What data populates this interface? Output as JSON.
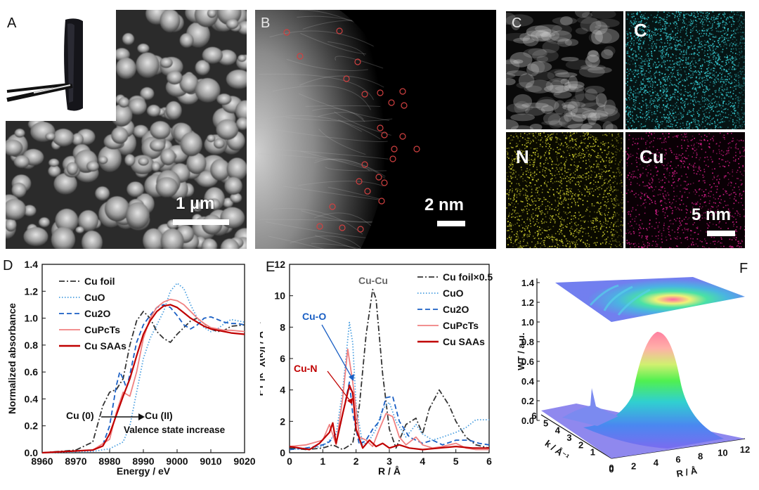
{
  "panels": {
    "A": {
      "letter": "A",
      "scale": "1 µm"
    },
    "B": {
      "letter": "B",
      "scale": "2 nm"
    },
    "C": {
      "letter": "C",
      "scale": "5 nm",
      "maps": [
        "C",
        "N",
        "Cu"
      ]
    },
    "D": {
      "letter": "D"
    },
    "E": {
      "letter": "E"
    },
    "F": {
      "letter": "F"
    }
  },
  "chart_data": [
    {
      "id": "D",
      "type": "line",
      "xlabel": "Energy / eV",
      "ylabel": "Normalized absorbance",
      "xlim": [
        8960,
        9020
      ],
      "ylim": [
        0.0,
        1.4
      ],
      "xticks": [
        8960,
        8970,
        8980,
        8990,
        9000,
        9010,
        9020
      ],
      "yticks": [
        0.0,
        0.2,
        0.4,
        0.6,
        0.8,
        1.0,
        1.2,
        1.4
      ],
      "legend": "top-left",
      "annotations": {
        "start": "Cu (0)",
        "end": "Cu (II)",
        "note": "Valence state increase"
      },
      "series": [
        {
          "name": "Cu foil",
          "color": "#333333",
          "dash": "dashdot",
          "x": [
            8960,
            8970,
            8975,
            8978,
            8980,
            8982,
            8984,
            8986,
            8988,
            8990,
            8992,
            8994,
            8996,
            8998,
            9000,
            9002,
            9004,
            9006,
            9008,
            9010,
            9012,
            9014,
            9016,
            9020
          ],
          "y": [
            0.0,
            0.02,
            0.08,
            0.35,
            0.45,
            0.47,
            0.55,
            0.8,
            0.98,
            1.05,
            1.0,
            0.9,
            0.85,
            0.82,
            0.88,
            0.93,
            0.98,
            1.0,
            0.96,
            0.92,
            0.9,
            0.91,
            0.94,
            0.95
          ]
        },
        {
          "name": "CuO",
          "color": "#4a9fe0",
          "dash": "dotted",
          "x": [
            8960,
            8975,
            8980,
            8984,
            8986,
            8988,
            8990,
            8992,
            8994,
            8996,
            8998,
            9000,
            9002,
            9004,
            9006,
            9008,
            9010,
            9012,
            9014,
            9016,
            9018,
            9020
          ],
          "y": [
            0.0,
            0.01,
            0.03,
            0.08,
            0.2,
            0.45,
            0.7,
            0.85,
            0.95,
            1.05,
            1.2,
            1.26,
            1.22,
            1.1,
            1.0,
            0.93,
            0.9,
            0.92,
            0.96,
            0.99,
            0.98,
            0.97
          ]
        },
        {
          "name": "Cu2O",
          "color": "#1a5fc4",
          "dash": "dashed",
          "x": [
            8960,
            8975,
            8978,
            8980,
            8982,
            8983,
            8984,
            8985,
            8986,
            8988,
            8990,
            8992,
            8994,
            8996,
            8998,
            9000,
            9002,
            9004,
            9006,
            9008,
            9010,
            9012,
            9014,
            9016,
            9018,
            9020
          ],
          "y": [
            0.0,
            0.02,
            0.06,
            0.2,
            0.5,
            0.6,
            0.55,
            0.48,
            0.58,
            0.82,
            0.95,
            1.02,
            1.08,
            1.1,
            1.08,
            1.02,
            0.95,
            0.92,
            0.95,
            1.0,
            1.01,
            0.99,
            0.97,
            0.96,
            0.96,
            0.95
          ]
        },
        {
          "name": "CuPcTs",
          "color": "#f08080",
          "dash": "solid",
          "x": [
            8960,
            8975,
            8980,
            8982,
            8984,
            8986,
            8988,
            8990,
            8992,
            8994,
            8996,
            8998,
            9000,
            9002,
            9004,
            9006,
            9008,
            9010,
            9012,
            9014,
            9016,
            9020
          ],
          "y": [
            0.0,
            0.02,
            0.1,
            0.3,
            0.45,
            0.42,
            0.6,
            0.85,
            1.0,
            1.08,
            1.12,
            1.14,
            1.13,
            1.1,
            1.05,
            1.0,
            0.96,
            0.93,
            0.92,
            0.91,
            0.91,
            0.9
          ]
        },
        {
          "name": "Cu SAAs",
          "color": "#c00000",
          "dash": "solid",
          "x": [
            8960,
            8975,
            8978,
            8980,
            8982,
            8984,
            8986,
            8988,
            8990,
            8992,
            8994,
            8996,
            8998,
            9000,
            9002,
            9004,
            9006,
            9008,
            9010,
            9012,
            9014,
            9016,
            9020
          ],
          "y": [
            0.0,
            0.02,
            0.05,
            0.14,
            0.28,
            0.42,
            0.55,
            0.72,
            0.88,
            0.98,
            1.05,
            1.09,
            1.1,
            1.08,
            1.04,
            1.0,
            0.97,
            0.94,
            0.92,
            0.91,
            0.9,
            0.89,
            0.88
          ]
        }
      ]
    },
    {
      "id": "E",
      "type": "line",
      "xlabel": "R / Å",
      "ylabel": "FT |k³ χ(k)| / Å⁻⁴",
      "xlim": [
        0,
        6
      ],
      "ylim": [
        0,
        12
      ],
      "xticks": [
        0,
        1,
        2,
        3,
        4,
        5,
        6
      ],
      "yticks": [
        0,
        2,
        4,
        6,
        8,
        10,
        12
      ],
      "legend": "top-right",
      "annotations": {
        "cucu": "Cu-Cu",
        "cuo": "Cu-O",
        "cun": "Cu-N"
      },
      "series": [
        {
          "name": "Cu foil×0.5",
          "color": "#333333",
          "dash": "dashdot",
          "x": [
            0,
            0.5,
            1.0,
            1.3,
            1.6,
            1.9,
            2.1,
            2.3,
            2.5,
            2.6,
            2.8,
            3.0,
            3.2,
            3.5,
            3.8,
            4.0,
            4.2,
            4.5,
            4.8,
            5.0,
            5.3,
            5.6,
            6.0
          ],
          "y": [
            0.3,
            0.2,
            0.3,
            0.5,
            0.2,
            0.6,
            3.0,
            7.5,
            10.4,
            9.8,
            5.0,
            1.5,
            0.3,
            1.8,
            2.2,
            1.2,
            2.8,
            4.0,
            3.0,
            2.0,
            1.0,
            0.5,
            0.3
          ]
        },
        {
          "name": "CuO",
          "color": "#4a9fe0",
          "dash": "dotted",
          "x": [
            0,
            0.5,
            1.0,
            1.2,
            1.4,
            1.6,
            1.8,
            1.9,
            2.0,
            2.2,
            2.4,
            2.6,
            2.8,
            3.0,
            3.2,
            3.5,
            3.8,
            4.0,
            4.3,
            4.6,
            5.0,
            5.3,
            5.6,
            6.0
          ],
          "y": [
            0.2,
            0.3,
            0.4,
            0.8,
            1.2,
            4.0,
            8.3,
            7.0,
            3.0,
            0.5,
            0.8,
            1.5,
            2.8,
            3.2,
            2.0,
            1.0,
            1.8,
            1.2,
            0.8,
            1.0,
            1.3,
            1.6,
            2.1,
            2.1
          ]
        },
        {
          "name": "Cu2O",
          "color": "#1a5fc4",
          "dash": "dashed",
          "x": [
            0,
            0.5,
            1.0,
            1.2,
            1.5,
            1.7,
            1.8,
            1.9,
            2.1,
            2.3,
            2.5,
            2.7,
            2.9,
            3.1,
            3.3,
            3.6,
            4.0,
            4.3,
            4.6,
            5.0,
            5.4,
            5.7,
            6.0
          ],
          "y": [
            0.2,
            0.3,
            0.5,
            0.7,
            1.5,
            3.5,
            4.5,
            2.5,
            0.5,
            0.8,
            1.5,
            2.0,
            3.5,
            3.6,
            2.0,
            1.0,
            0.6,
            0.8,
            0.5,
            0.8,
            0.8,
            0.6,
            0.5
          ]
        },
        {
          "name": "CuPcTs",
          "color": "#f08080",
          "dash": "solid",
          "x": [
            0,
            0.5,
            1.0,
            1.2,
            1.4,
            1.6,
            1.75,
            1.9,
            2.1,
            2.3,
            2.5,
            2.7,
            2.9,
            3.1,
            3.3,
            3.5,
            3.8,
            4.0,
            4.3,
            4.6,
            5.0,
            5.3,
            5.6,
            6.0
          ],
          "y": [
            0.4,
            0.5,
            0.8,
            1.8,
            0.5,
            3.5,
            6.6,
            4.5,
            1.0,
            0.8,
            0.4,
            1.5,
            2.5,
            2.3,
            1.0,
            0.5,
            1.0,
            0.5,
            0.3,
            0.4,
            0.6,
            0.3,
            0.2,
            0.2
          ]
        },
        {
          "name": "Cu SAAs",
          "color": "#c00000",
          "dash": "solid",
          "x": [
            0,
            0.3,
            0.6,
            0.9,
            1.2,
            1.3,
            1.4,
            1.6,
            1.8,
            1.9,
            2.0,
            2.2,
            2.4,
            2.6,
            2.8,
            3.0,
            3.3,
            3.6,
            4.0,
            4.5,
            5.0,
            5.5,
            6.0
          ],
          "y": [
            0.4,
            0.3,
            0.2,
            0.6,
            1.3,
            1.9,
            0.6,
            2.5,
            4.3,
            3.8,
            1.5,
            0.3,
            0.8,
            0.4,
            0.6,
            0.3,
            0.5,
            0.3,
            0.2,
            0.3,
            0.4,
            0.3,
            0.3
          ]
        }
      ]
    },
    {
      "id": "F",
      "type": "surface",
      "zlabel": "WT / a.u.",
      "xlabel": "R / Å",
      "ylabel": "k / Å⁻¹",
      "zticks": [
        0.0,
        0.2,
        0.4,
        0.6,
        0.8,
        1.0,
        1.2,
        1.4
      ],
      "xticks": [
        0,
        2,
        4,
        6,
        8,
        10,
        12
      ],
      "yticks": [
        1,
        2,
        3,
        4,
        5,
        6
      ],
      "peak": {
        "R": 5.5,
        "k": 3.5,
        "value": 1.0
      }
    }
  ]
}
